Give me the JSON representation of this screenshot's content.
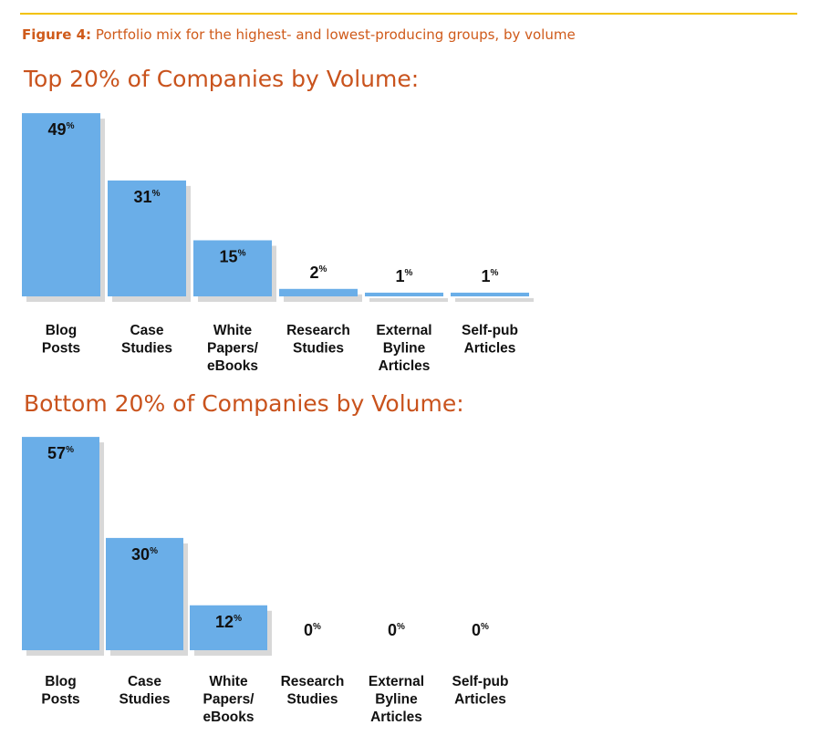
{
  "figure": {
    "label": "Figure 4:",
    "caption": "Portfolio mix for the highest- and lowest-producing groups, by volume"
  },
  "colors": {
    "bar": "#6aaee8",
    "shadow": "#b8b8b8",
    "rule": "#f2c200",
    "title": "#c9531d"
  },
  "chart_data": [
    {
      "type": "bar",
      "title": "Top 20% of Companies by Volume:",
      "categories": [
        "Blog Posts",
        "Case Studies",
        "White Papers/ eBooks",
        "Research Studies",
        "External Byline Articles",
        "Self-pub Articles"
      ],
      "category_lines": [
        [
          "Blog",
          "Posts"
        ],
        [
          "Case",
          "Studies"
        ],
        [
          "White",
          "Papers/",
          "eBooks"
        ],
        [
          "Research",
          "Studies"
        ],
        [
          "External",
          "Byline",
          "Articles"
        ],
        [
          "Self-pub",
          "Articles"
        ]
      ],
      "values": [
        49,
        31,
        15,
        2,
        1,
        1
      ],
      "value_suffix": "%",
      "xlabel": "",
      "ylabel": "",
      "ylim": [
        0,
        50
      ],
      "grid": false
    },
    {
      "type": "bar",
      "title": "Bottom 20% of Companies by Volume:",
      "categories": [
        "Blog Posts",
        "Case Studies",
        "White Papers/ eBooks",
        "Research Studies",
        "External Byline Articles",
        "Self-pub Articles"
      ],
      "category_lines": [
        [
          "Blog",
          "Posts"
        ],
        [
          "Case",
          "Studies"
        ],
        [
          "White",
          "Papers/",
          "eBooks"
        ],
        [
          "Research",
          "Studies"
        ],
        [
          "External",
          "Byline",
          "Articles"
        ],
        [
          "Self-pub",
          "Articles"
        ]
      ],
      "values": [
        57,
        30,
        12,
        0,
        0,
        0
      ],
      "value_suffix": "%",
      "xlabel": "",
      "ylabel": "",
      "ylim": [
        0,
        58
      ],
      "grid": false
    }
  ]
}
